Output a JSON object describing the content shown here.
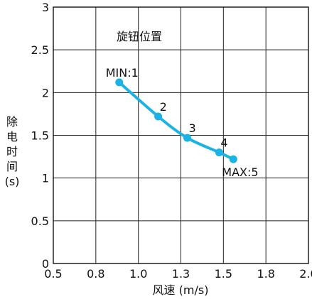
{
  "chart_data": {
    "type": "line",
    "title": "",
    "xlabel": "风速 (m/s)",
    "ylabel_lines": [
      "除",
      "电",
      "时",
      "间",
      "(s)"
    ],
    "x_tick_labels": [
      "0.5",
      "0.8",
      "1.0",
      "1.3",
      "1.5",
      "1.8",
      "2.0"
    ],
    "y_tick_labels": [
      "0",
      "0.5",
      "1",
      "1.5",
      "2",
      "2.5",
      "3"
    ],
    "ylim": [
      0,
      3
    ],
    "grid": true,
    "series_color": "#1BB3E6",
    "points": [
      {
        "x": 0.91,
        "y": 2.12,
        "label": "MIN:1"
      },
      {
        "x": 1.14,
        "y": 1.72,
        "label": "2"
      },
      {
        "x": 1.33,
        "y": 1.47,
        "label": "3"
      },
      {
        "x": 1.48,
        "y": 1.3,
        "label": "4"
      },
      {
        "x": 1.57,
        "y": 1.22,
        "label": "MAX:5"
      }
    ],
    "inner_annotation": "旋钮位置"
  }
}
